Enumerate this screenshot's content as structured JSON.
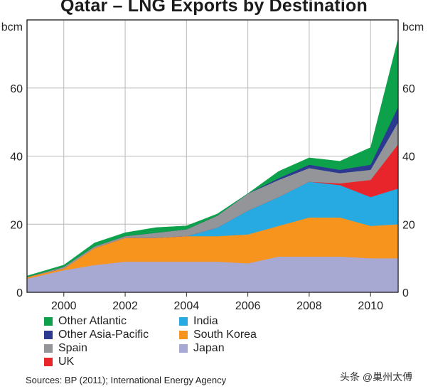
{
  "title": "Qatar – LNG Exports by Destination",
  "source": "Sources: BP (2011); International Energy Agency",
  "watermark": "头条 @巢州太傅",
  "chart_data": {
    "type": "area",
    "stacked": true,
    "title": "Qatar – LNG Exports by Destination",
    "ylabel_left": "bcm",
    "ylabel_right": "bcm",
    "ylim": [
      0,
      80
    ],
    "yticks": [
      0,
      20,
      40,
      60
    ],
    "xlim": [
      1998.8,
      2010.9
    ],
    "xticks": [
      2000,
      2002,
      2004,
      2006,
      2008,
      2010
    ],
    "grid": true,
    "legend_position": "bottom",
    "x": [
      1998.8,
      2000,
      2001,
      2002,
      2003,
      2004,
      2005,
      2006,
      2007,
      2008,
      2009,
      2010,
      2010.9
    ],
    "series": [
      {
        "name": "Japan",
        "color": "#a7a9d3",
        "values": [
          4,
          6.5,
          8,
          9,
          9,
          9,
          9,
          8.5,
          10.5,
          10.5,
          10.5,
          10,
          10
        ]
      },
      {
        "name": "South Korea",
        "color": "#f7941d",
        "values": [
          0.5,
          0.5,
          5,
          7,
          7,
          7.5,
          7.5,
          8.5,
          9,
          11.5,
          11.5,
          9.5,
          10
        ]
      },
      {
        "name": "India",
        "color": "#27aae1",
        "values": [
          0,
          0,
          0,
          0,
          0,
          0,
          2.5,
          7,
          8.5,
          10.5,
          9.5,
          8.5,
          10.5
        ]
      },
      {
        "name": "UK",
        "color": "#e8252a",
        "values": [
          0,
          0,
          0,
          0,
          0,
          0,
          0,
          0,
          0,
          0,
          0.5,
          5,
          13
        ]
      },
      {
        "name": "Spain",
        "color": "#939598",
        "values": [
          0,
          0.5,
          0.5,
          0.5,
          1.5,
          2,
          3.5,
          5,
          5,
          4,
          3,
          3,
          6.5
        ]
      },
      {
        "name": "Other Asia-Pacific",
        "color": "#2b3990",
        "values": [
          0,
          0,
          0,
          0,
          0,
          0,
          0,
          0,
          0.5,
          1,
          1,
          1.5,
          4.5
        ]
      },
      {
        "name": "Other Atlantic",
        "color": "#0ea14b",
        "values": [
          0.3,
          0.5,
          1,
          1,
          1.5,
          1,
          0.5,
          0,
          2,
          2,
          2.5,
          5,
          20
        ]
      }
    ],
    "legend_order": [
      "Other Atlantic",
      "India",
      "Other Asia-Pacific",
      "South Korea",
      "Spain",
      "Japan",
      "UK"
    ]
  }
}
